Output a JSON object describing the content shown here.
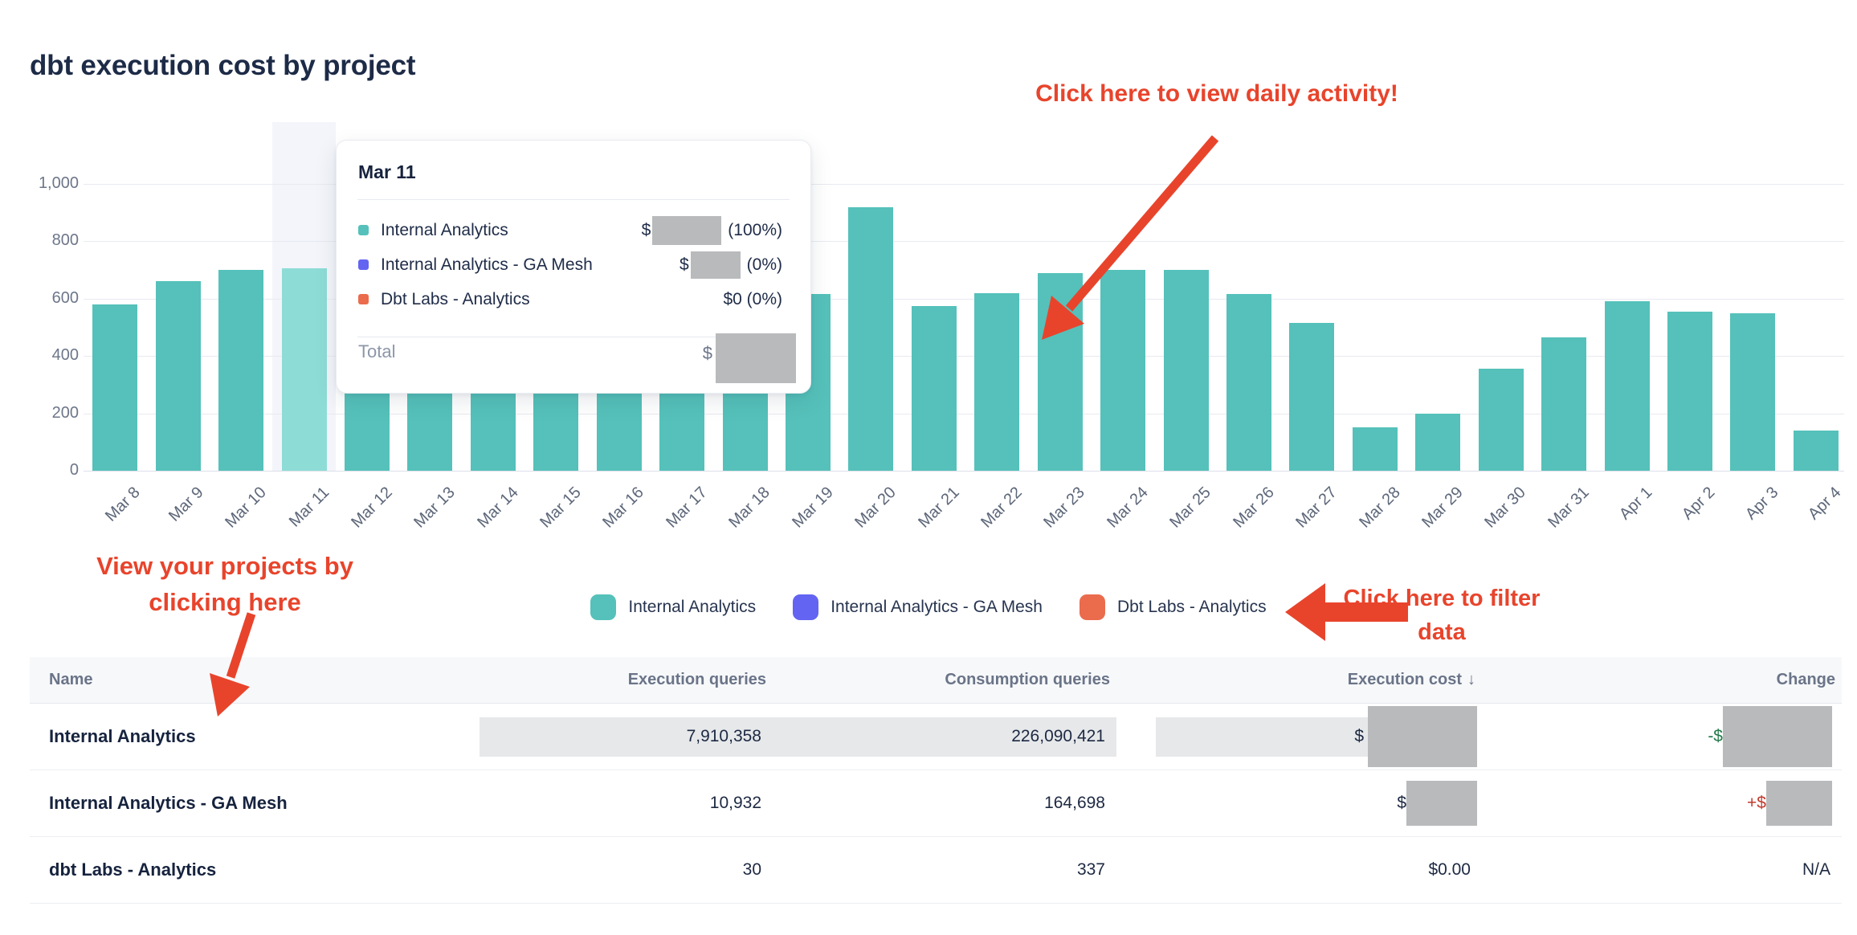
{
  "page": {
    "title": "dbt execution cost by project"
  },
  "chart_data": {
    "type": "bar",
    "stacked": true,
    "title": "dbt execution cost by project",
    "categories": [
      "Mar 8",
      "Mar 9",
      "Mar 10",
      "Mar 11",
      "Mar 12",
      "Mar 13",
      "Mar 14",
      "Mar 15",
      "Mar 16",
      "Mar 17",
      "Mar 18",
      "Mar 19",
      "Mar 20",
      "Mar 21",
      "Mar 22",
      "Mar 23",
      "Mar 24",
      "Mar 25",
      "Mar 26",
      "Mar 27",
      "Mar 28",
      "Mar 29",
      "Mar 30",
      "Mar 31",
      "Apr 1",
      "Apr 2",
      "Apr 3",
      "Apr 4"
    ],
    "series": [
      {
        "name": "Internal Analytics",
        "color": "#55c1ba",
        "values": [
          580,
          660,
          700,
          705,
          295,
          295,
          295,
          295,
          295,
          295,
          295,
          615,
          920,
          575,
          620,
          690,
          700,
          700,
          615,
          515,
          150,
          200,
          355,
          465,
          590,
          555,
          550,
          140
        ]
      },
      {
        "name": "Internal Analytics - GA Mesh",
        "color": "#6364f1",
        "values": [
          0,
          0,
          0,
          0,
          0,
          0,
          0,
          0,
          0,
          0,
          0,
          0,
          0,
          0,
          0,
          0,
          0,
          0,
          0,
          0,
          0,
          0,
          0,
          0,
          0,
          0,
          0,
          0
        ]
      },
      {
        "name": "Dbt Labs - Analytics",
        "color": "#ea6c4d",
        "values": [
          0,
          0,
          0,
          0,
          0,
          0,
          0,
          0,
          0,
          0,
          0,
          0,
          0,
          0,
          0,
          0,
          0,
          0,
          0,
          0,
          0,
          0,
          0,
          0,
          0,
          0,
          0,
          0
        ]
      }
    ],
    "ylim": [
      0,
      1000
    ],
    "yticks": [
      {
        "label": "1,000",
        "value": 1000
      },
      {
        "label": "800",
        "value": 800
      },
      {
        "label": "600",
        "value": 600
      },
      {
        "label": "400",
        "value": 400
      },
      {
        "label": "200",
        "value": 200
      },
      {
        "label": "0",
        "value": 0
      }
    ],
    "highlighted_category": "Mar 11",
    "grid": "horizontal",
    "legend_position": "bottom"
  },
  "tooltip": {
    "title": "Mar 11",
    "rows": [
      {
        "label": "Internal Analytics",
        "color": "#55c1ba",
        "value": {
          "prefix": "$",
          "redacted": true,
          "suffix": "(100%)"
        }
      },
      {
        "label": "Internal Analytics - GA Mesh",
        "color": "#6364f1",
        "value": {
          "prefix": "$",
          "redacted": true,
          "suffix": "(0%)"
        }
      },
      {
        "label": "Dbt Labs - Analytics",
        "color": "#ea6c4d",
        "value": {
          "text": "$0 (0%)"
        }
      }
    ],
    "total": {
      "label": "Total",
      "prefix": "$",
      "redacted": true
    }
  },
  "legend": {
    "items": [
      {
        "label": "Internal Analytics",
        "color": "#55c1ba"
      },
      {
        "label": "Internal Analytics - GA Mesh",
        "color": "#6364f1"
      },
      {
        "label": "Dbt Labs - Analytics",
        "color": "#ea6c4d"
      }
    ]
  },
  "annotations": {
    "daily_activity": {
      "text": "Click here to view daily activity!"
    },
    "view_projects": {
      "line1": "View your projects by",
      "line2": "clicking here"
    },
    "filter_data": {
      "line1": "Click here to filter",
      "line2": "data"
    },
    "color": "#e8442c"
  },
  "table": {
    "columns": [
      {
        "label": "Name"
      },
      {
        "label": "Execution queries"
      },
      {
        "label": "Consumption queries"
      },
      {
        "label": "Execution cost",
        "sort_icon": "↓"
      },
      {
        "label": "Change"
      }
    ],
    "rows": [
      {
        "name": "Internal Analytics",
        "execution_queries": "7,910,358",
        "consumption_queries": "226,090,421",
        "execution_cost": {
          "prefix": "$",
          "redacted": true
        },
        "change": {
          "prefix": "-$",
          "redacted": true,
          "direction": "decrease"
        },
        "highlighted": true
      },
      {
        "name": "Internal Analytics - GA Mesh",
        "execution_queries": "10,932",
        "consumption_queries": "164,698",
        "execution_cost": {
          "prefix": "$",
          "redacted": true
        },
        "change": {
          "prefix": "+$",
          "redacted": true,
          "direction": "increase"
        },
        "highlighted": false
      },
      {
        "name": "dbt Labs - Analytics",
        "execution_queries": "30",
        "consumption_queries": "337",
        "execution_cost": {
          "text": "$0.00"
        },
        "change": {
          "text": "N/A"
        },
        "highlighted": false
      }
    ]
  },
  "colors": {
    "bar": "#55c1ba",
    "bar_highlighted": "#8edcd6",
    "highlight_band": "#f3f5fa",
    "annotation_red": "#e8442c",
    "redaction_gray": "#b9babc",
    "cell_highlight_gray": "#e6e8ea",
    "change_decrease_green": "#237a4b",
    "change_increase_red": "#c13a2e"
  }
}
